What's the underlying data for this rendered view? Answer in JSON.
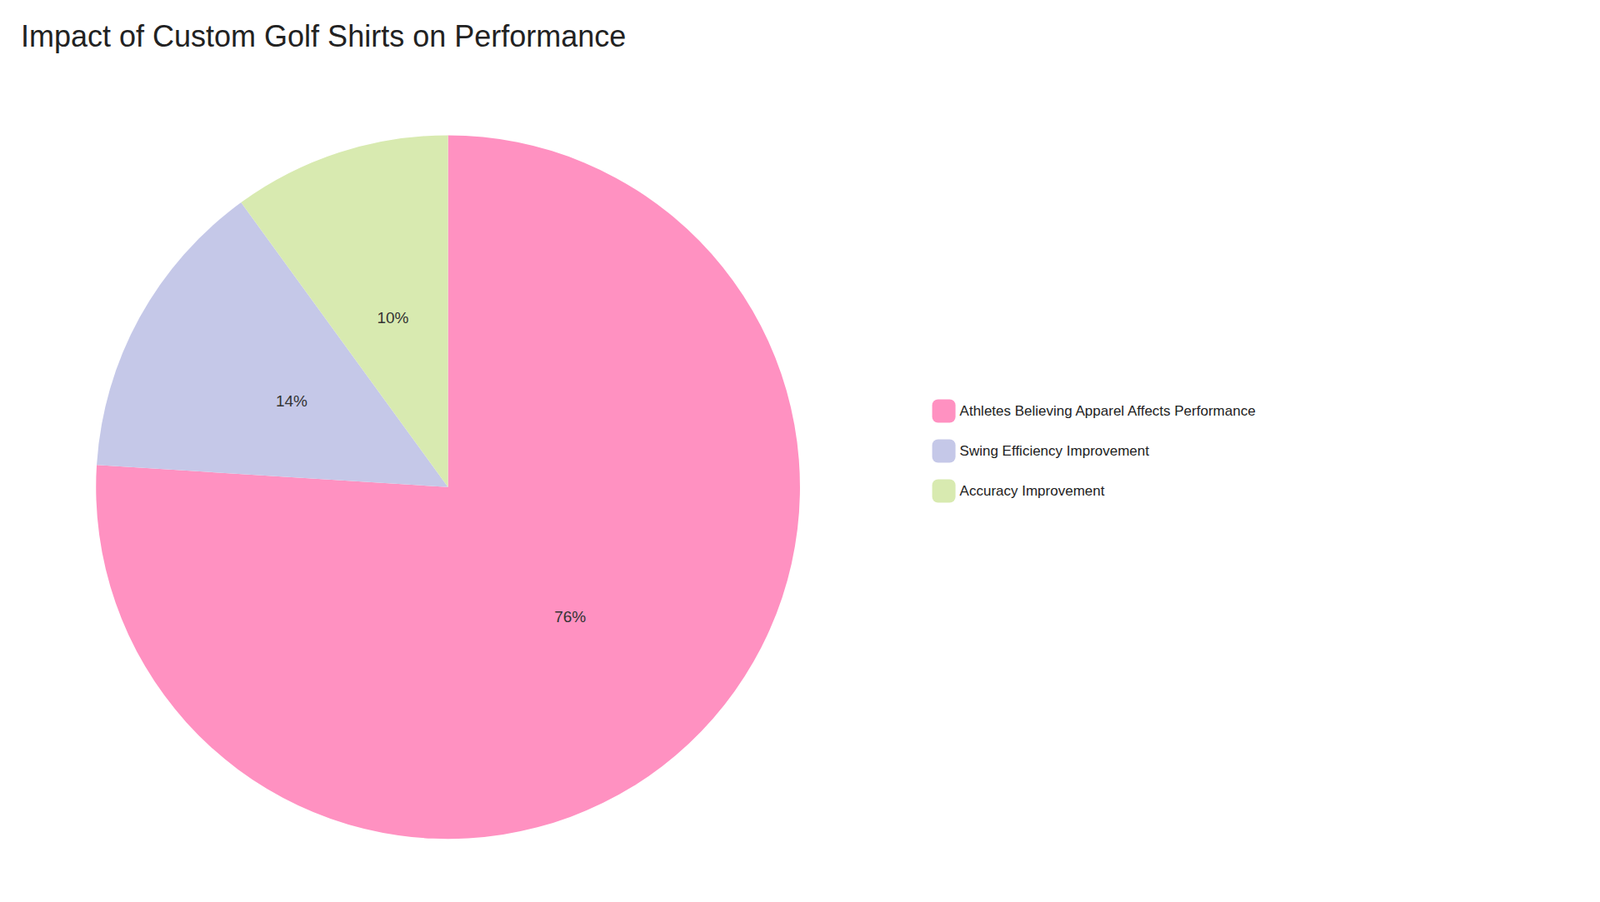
{
  "chart_data": {
    "type": "pie",
    "title": "Impact of Custom Golf Shirts on Performance",
    "categories": [
      "Athletes Believing Apparel Affects Performance",
      "Swing Efficiency Improvement",
      "Accuracy Improvement"
    ],
    "values": [
      76,
      14,
      10
    ],
    "value_labels": [
      "76%",
      "14%",
      "10%"
    ],
    "colors": [
      "#FF91C1",
      "#C5C8E8",
      "#D8EAB0"
    ],
    "data_labels": true,
    "legend": "right"
  }
}
